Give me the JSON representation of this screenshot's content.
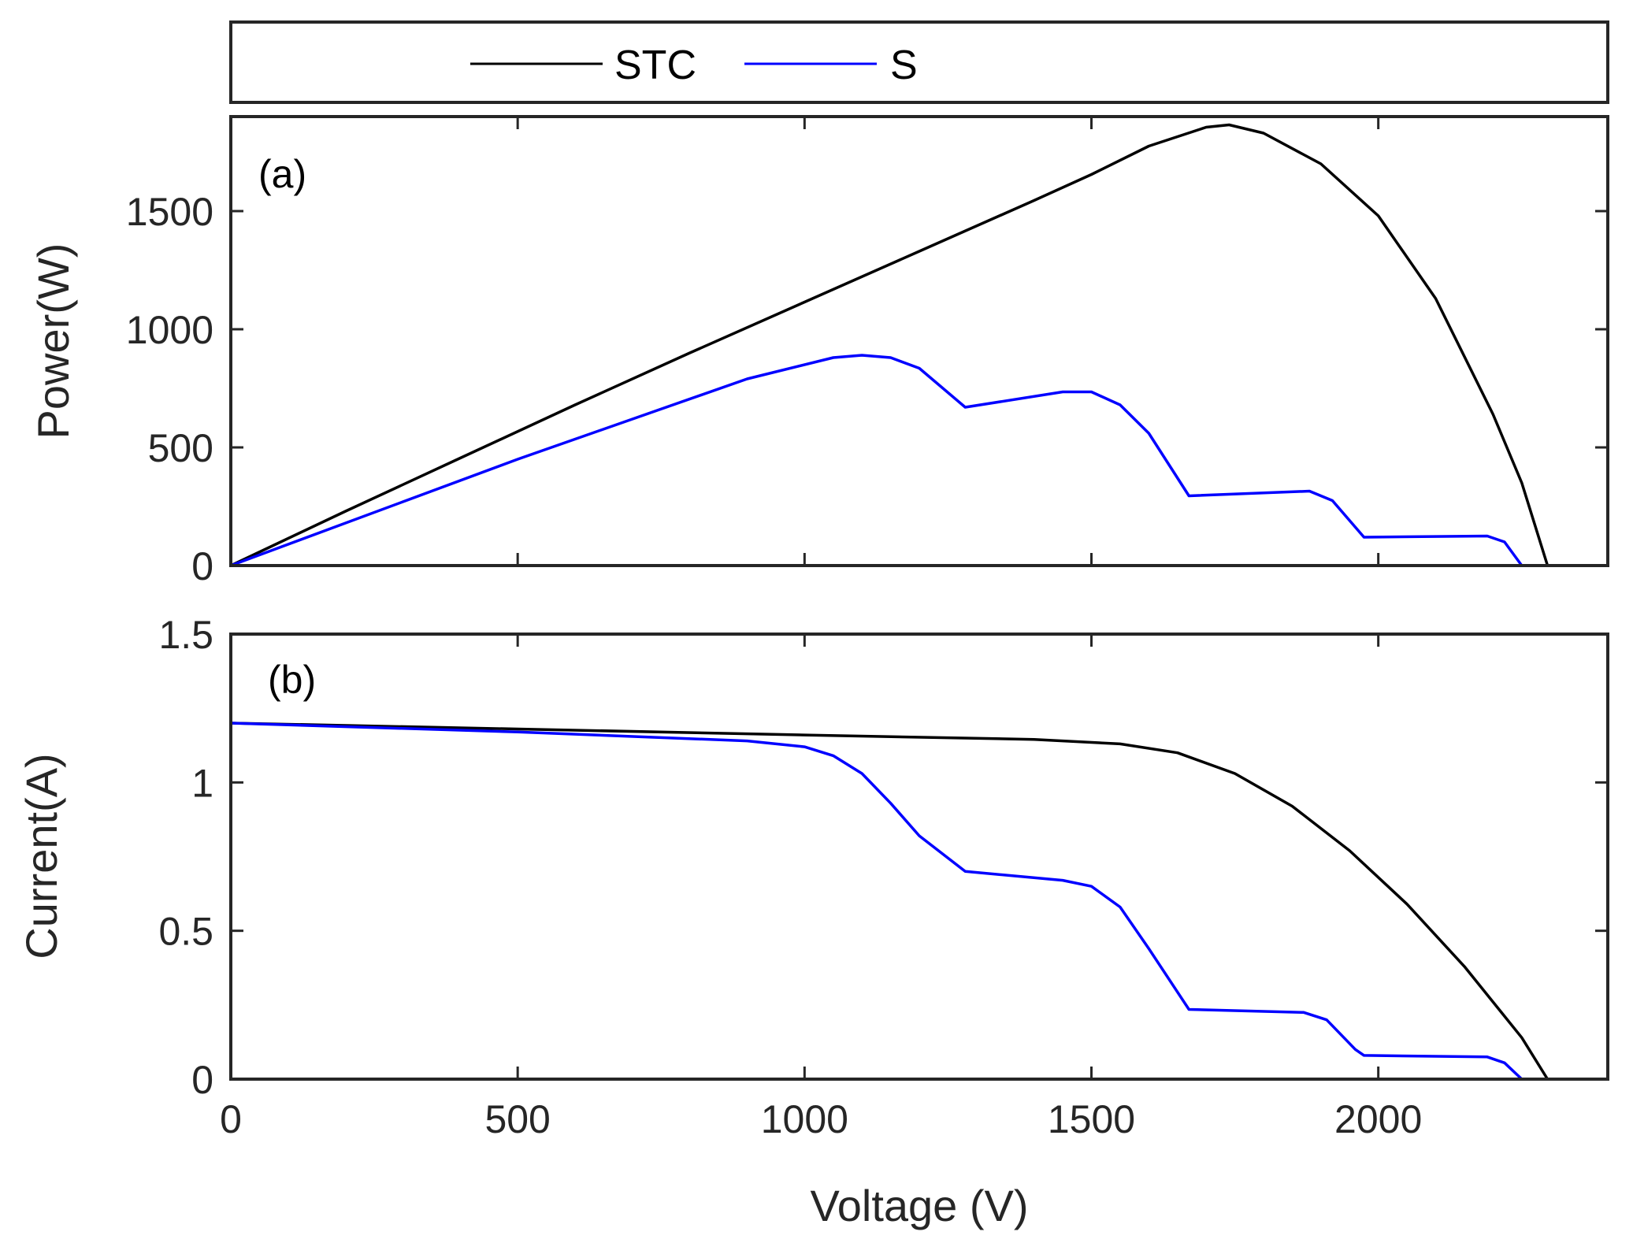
{
  "chart_data": [
    {
      "type": "line",
      "panel_label": "(a)",
      "ylabel": "Power(W)",
      "xlabel": "",
      "xlim": [
        0,
        2400
      ],
      "ylim": [
        0,
        1900
      ],
      "xticks": [
        0,
        500,
        1000,
        1500,
        2000
      ],
      "yticks": [
        0,
        500,
        1000,
        1500
      ],
      "yticklabels": [
        "0",
        "500",
        "1000",
        "1500"
      ],
      "series": [
        {
          "name": "STC",
          "color": "#000000",
          "x": [
            0,
            200,
            400,
            600,
            800,
            1000,
            1200,
            1400,
            1500,
            1600,
            1700,
            1740,
            1800,
            1900,
            2000,
            2100,
            2200,
            2250,
            2295
          ],
          "y": [
            0,
            230,
            455,
            680,
            900,
            1115,
            1330,
            1545,
            1655,
            1775,
            1855,
            1865,
            1830,
            1700,
            1480,
            1130,
            640,
            350,
            0
          ]
        },
        {
          "name": "S",
          "color": "#0000ff",
          "x": [
            0,
            500,
            900,
            1050,
            1100,
            1150,
            1200,
            1280,
            1450,
            1500,
            1550,
            1600,
            1670,
            1880,
            1920,
            1975,
            2190,
            2220,
            2250
          ],
          "y": [
            0,
            450,
            790,
            880,
            890,
            880,
            835,
            670,
            735,
            735,
            680,
            560,
            295,
            315,
            275,
            120,
            125,
            100,
            0
          ]
        }
      ]
    },
    {
      "type": "line",
      "panel_label": "(b)",
      "ylabel": "Current(A)",
      "xlabel": "Voltage (V)",
      "xlim": [
        0,
        2400
      ],
      "ylim": [
        0,
        1.5
      ],
      "xticks": [
        0,
        500,
        1000,
        1500,
        2000
      ],
      "xticklabels": [
        "0",
        "500",
        "1000",
        "1500",
        "2000"
      ],
      "yticks": [
        0,
        0.5,
        1,
        1.5
      ],
      "yticklabels": [
        "0",
        "0.5",
        "1",
        "1.5"
      ],
      "series": [
        {
          "name": "STC",
          "color": "#000000",
          "x": [
            0,
            500,
            1000,
            1400,
            1550,
            1650,
            1750,
            1850,
            1950,
            2050,
            2150,
            2250,
            2295
          ],
          "y": [
            1.2,
            1.18,
            1.16,
            1.145,
            1.13,
            1.1,
            1.03,
            0.92,
            0.77,
            0.59,
            0.38,
            0.14,
            0.0
          ]
        },
        {
          "name": "S",
          "color": "#0000ff",
          "x": [
            0,
            500,
            900,
            1000,
            1050,
            1100,
            1150,
            1200,
            1280,
            1450,
            1500,
            1550,
            1600,
            1670,
            1870,
            1910,
            1960,
            1975,
            2190,
            2220,
            2250
          ],
          "y": [
            1.2,
            1.17,
            1.14,
            1.12,
            1.09,
            1.03,
            0.93,
            0.82,
            0.7,
            0.67,
            0.65,
            0.58,
            0.44,
            0.235,
            0.225,
            0.2,
            0.1,
            0.08,
            0.075,
            0.055,
            0.0
          ]
        }
      ]
    }
  ],
  "legend": {
    "entries": [
      {
        "label": "STC",
        "color": "#000000"
      },
      {
        "label": "S",
        "color": "#0000ff"
      }
    ]
  }
}
